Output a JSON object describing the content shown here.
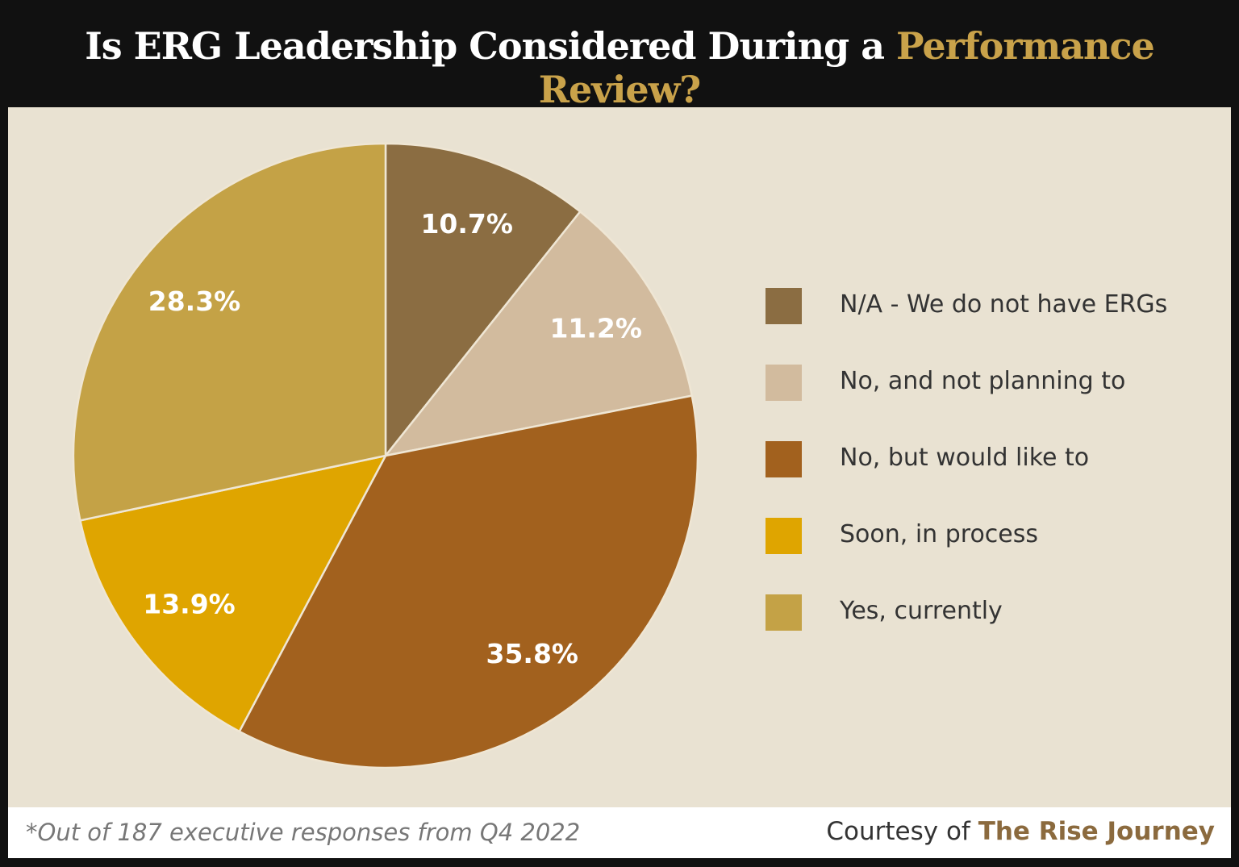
{
  "header": {
    "title_main": "Is ERG Leadership Considered During a ",
    "title_accent": "Performance Review?"
  },
  "footer": {
    "note": "*Out of 187 executive responses from Q4 2022",
    "credit_prefix": "Courtesy of ",
    "credit_brand": "The Rise Journey"
  },
  "chart_data": {
    "type": "pie",
    "title": "Is ERG Leadership Considered During a Performance Review?",
    "start": "12 o'clock, clockwise",
    "legend_position": "right",
    "slices": [
      {
        "label": "N/A - We do not have ERGs",
        "value": 10.7,
        "display": "10.7%",
        "color": "#8B6D42"
      },
      {
        "label": "No, and not planning to",
        "value": 11.2,
        "display": "11.2%",
        "color": "#D2BB9E"
      },
      {
        "label": "No, but would like to",
        "value": 35.8,
        "display": "35.8%",
        "color": "#A2611E"
      },
      {
        "label": "Soon, in process",
        "value": 13.9,
        "display": "13.9%",
        "color": "#DFA500"
      },
      {
        "label": "Yes, currently",
        "value": 28.3,
        "display": "28.3%",
        "color": "#C4A246"
      }
    ]
  }
}
